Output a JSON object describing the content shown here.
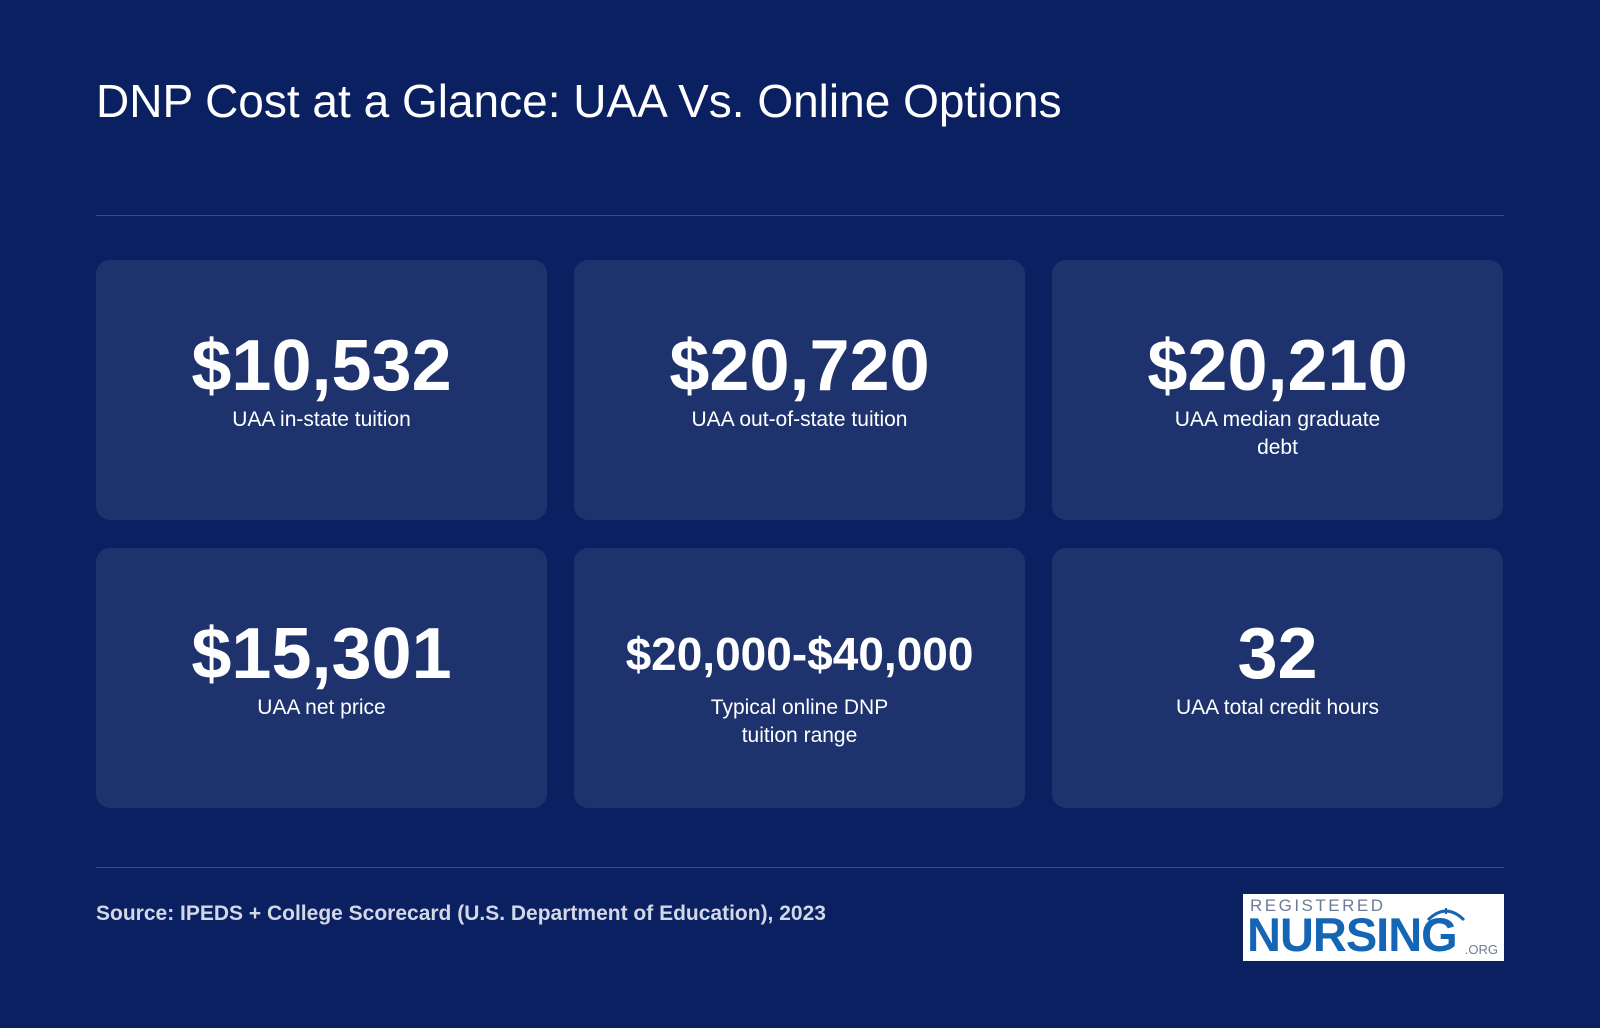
{
  "page": {
    "title": "DNP Cost at a Glance: UAA Vs. Online Options",
    "source": "Source: IPEDS + College Scorecard (U.S. Department of Education), 2023"
  },
  "stats": [
    {
      "value": "$10,532",
      "label": "UAA in-state tuition"
    },
    {
      "value": "$20,720",
      "label": "UAA out-of-state tuition"
    },
    {
      "value": "$20,210",
      "label": "UAA median graduate debt"
    },
    {
      "value": "$15,301",
      "label": "UAA net price"
    },
    {
      "value": "$20,000-$40,000",
      "label": "Typical online DNP tuition range"
    },
    {
      "value": "32",
      "label": "UAA total credit hours"
    }
  ],
  "logo": {
    "top_text": "REGISTERED",
    "main_text": "NURSING",
    "suffix": ".ORG",
    "icon": "nurse-cap-icon"
  },
  "colors": {
    "background": "#0b2060",
    "card": "#1e336d",
    "divider": "#33508a",
    "logo_blue": "#1466b4"
  }
}
